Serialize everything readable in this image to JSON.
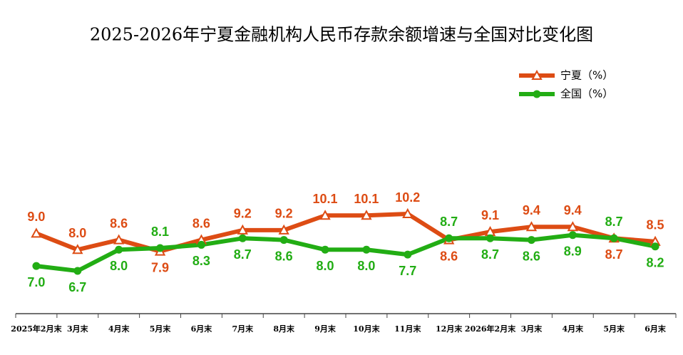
{
  "chart_data": {
    "type": "line",
    "title": "2025-2026年宁夏金融机构人民币存款余额增速与全国对比变化图",
    "categories": [
      "2025年2月末",
      "3月末",
      "4月末",
      "5月末",
      "6月末",
      "7月末",
      "8月末",
      "9月末",
      "10月末",
      "11月末",
      "12月末",
      "2026年2月末",
      "3月末",
      "4月末",
      "5月末",
      "6月末"
    ],
    "series": [
      {
        "name": "宁夏（%）",
        "color": "#dd4c14",
        "marker": "triangle",
        "values": [
          9.0,
          8.0,
          8.6,
          7.9,
          8.6,
          9.2,
          9.2,
          10.1,
          10.1,
          10.2,
          8.6,
          9.1,
          9.4,
          9.4,
          8.7,
          8.5
        ],
        "value_labels": [
          "9.0",
          "8.0",
          "8.6",
          "7.9",
          "8.6",
          "9.2",
          "9.2",
          "10.1",
          "10.1",
          "10.2",
          "8.6",
          "9.1",
          "9.4",
          "9.4",
          "8.7",
          "8.5"
        ]
      },
      {
        "name": "全国（%）",
        "color": "#22ad14",
        "marker": "circle",
        "values": [
          7.0,
          6.7,
          8.0,
          8.1,
          8.3,
          8.7,
          8.6,
          8.0,
          8.0,
          7.7,
          8.7,
          8.7,
          8.6,
          8.9,
          8.7,
          8.2
        ],
        "value_labels": [
          "7.0",
          "6.7",
          "8.0",
          "8.1",
          "8.3",
          "8.7",
          "8.6",
          "8.0",
          "8.0",
          "7.7",
          "8.7",
          "8.7",
          "8.6",
          "8.9",
          "8.7",
          "8.2"
        ]
      }
    ],
    "legend": "top-right",
    "grid": false
  }
}
